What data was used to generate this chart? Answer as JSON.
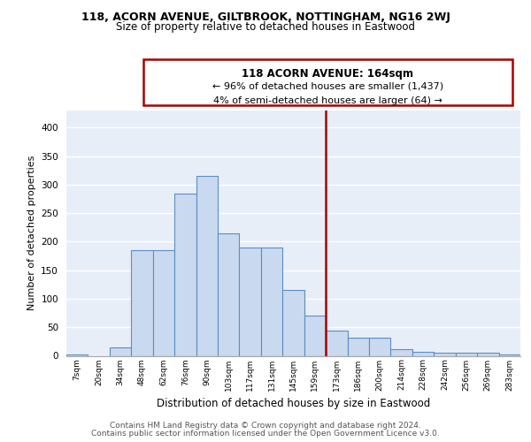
{
  "title1": "118, ACORN AVENUE, GILTBROOK, NOTTINGHAM, NG16 2WJ",
  "title2": "Size of property relative to detached houses in Eastwood",
  "xlabel": "Distribution of detached houses by size in Eastwood",
  "ylabel": "Number of detached properties",
  "bin_labels": [
    "7sqm",
    "20sqm",
    "34sqm",
    "48sqm",
    "62sqm",
    "76sqm",
    "90sqm",
    "103sqm",
    "117sqm",
    "131sqm",
    "145sqm",
    "159sqm",
    "173sqm",
    "186sqm",
    "200sqm",
    "214sqm",
    "228sqm",
    "242sqm",
    "256sqm",
    "269sqm",
    "283sqm"
  ],
  "bar_heights": [
    3,
    0,
    15,
    185,
    185,
    285,
    315,
    215,
    190,
    190,
    115,
    70,
    44,
    32,
    32,
    11,
    7,
    5,
    5,
    5,
    3
  ],
  "bar_color": "#c9d9ef",
  "bar_edge_color": "#5b8ec4",
  "bg_color": "#e8eef8",
  "grid_color": "#ffffff",
  "red_line_bin": 12,
  "annotation_line1": "118 ACORN AVENUE: 164sqm",
  "annotation_line2": "← 96% of detached houses are smaller (1,437)",
  "annotation_line3": "4% of semi-detached houses are larger (64) →",
  "annotation_box_color": "#ffffff",
  "annotation_border_color": "#aa0000",
  "ylim": [
    0,
    430
  ],
  "yticks": [
    0,
    50,
    100,
    150,
    200,
    250,
    300,
    350,
    400
  ],
  "footer1": "Contains HM Land Registry data © Crown copyright and database right 2024.",
  "footer2": "Contains public sector information licensed under the Open Government Licence v3.0."
}
